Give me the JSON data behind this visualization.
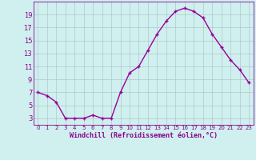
{
  "x": [
    0,
    1,
    2,
    3,
    4,
    5,
    6,
    7,
    8,
    9,
    10,
    11,
    12,
    13,
    14,
    15,
    16,
    17,
    18,
    19,
    20,
    21,
    22,
    23
  ],
  "y": [
    7,
    6.5,
    5.5,
    3,
    3,
    3,
    3.5,
    3,
    3,
    7,
    10,
    11,
    13.5,
    16,
    18,
    19.5,
    20,
    19.5,
    18.5,
    16,
    14,
    12,
    10.5,
    8.5
  ],
  "line_color": "#990099",
  "marker": "+",
  "bg_color": "#d0f0f0",
  "grid_color": "#b0c8c8",
  "xlabel": "Windchill (Refroidissement éolien,°C)",
  "ylabel": "",
  "yticks": [
    3,
    5,
    7,
    9,
    11,
    13,
    15,
    17,
    19
  ],
  "xticks": [
    0,
    1,
    2,
    3,
    4,
    5,
    6,
    7,
    8,
    9,
    10,
    11,
    12,
    13,
    14,
    15,
    16,
    17,
    18,
    19,
    20,
    21,
    22,
    23
  ],
  "ylim": [
    2.0,
    21.0
  ],
  "xlim": [
    -0.5,
    23.5
  ],
  "axis_color": "#880088",
  "tick_label_color": "#880088",
  "xlabel_color": "#880088",
  "linewidth": 1.0,
  "markersize": 3,
  "markeredgewidth": 1.0
}
